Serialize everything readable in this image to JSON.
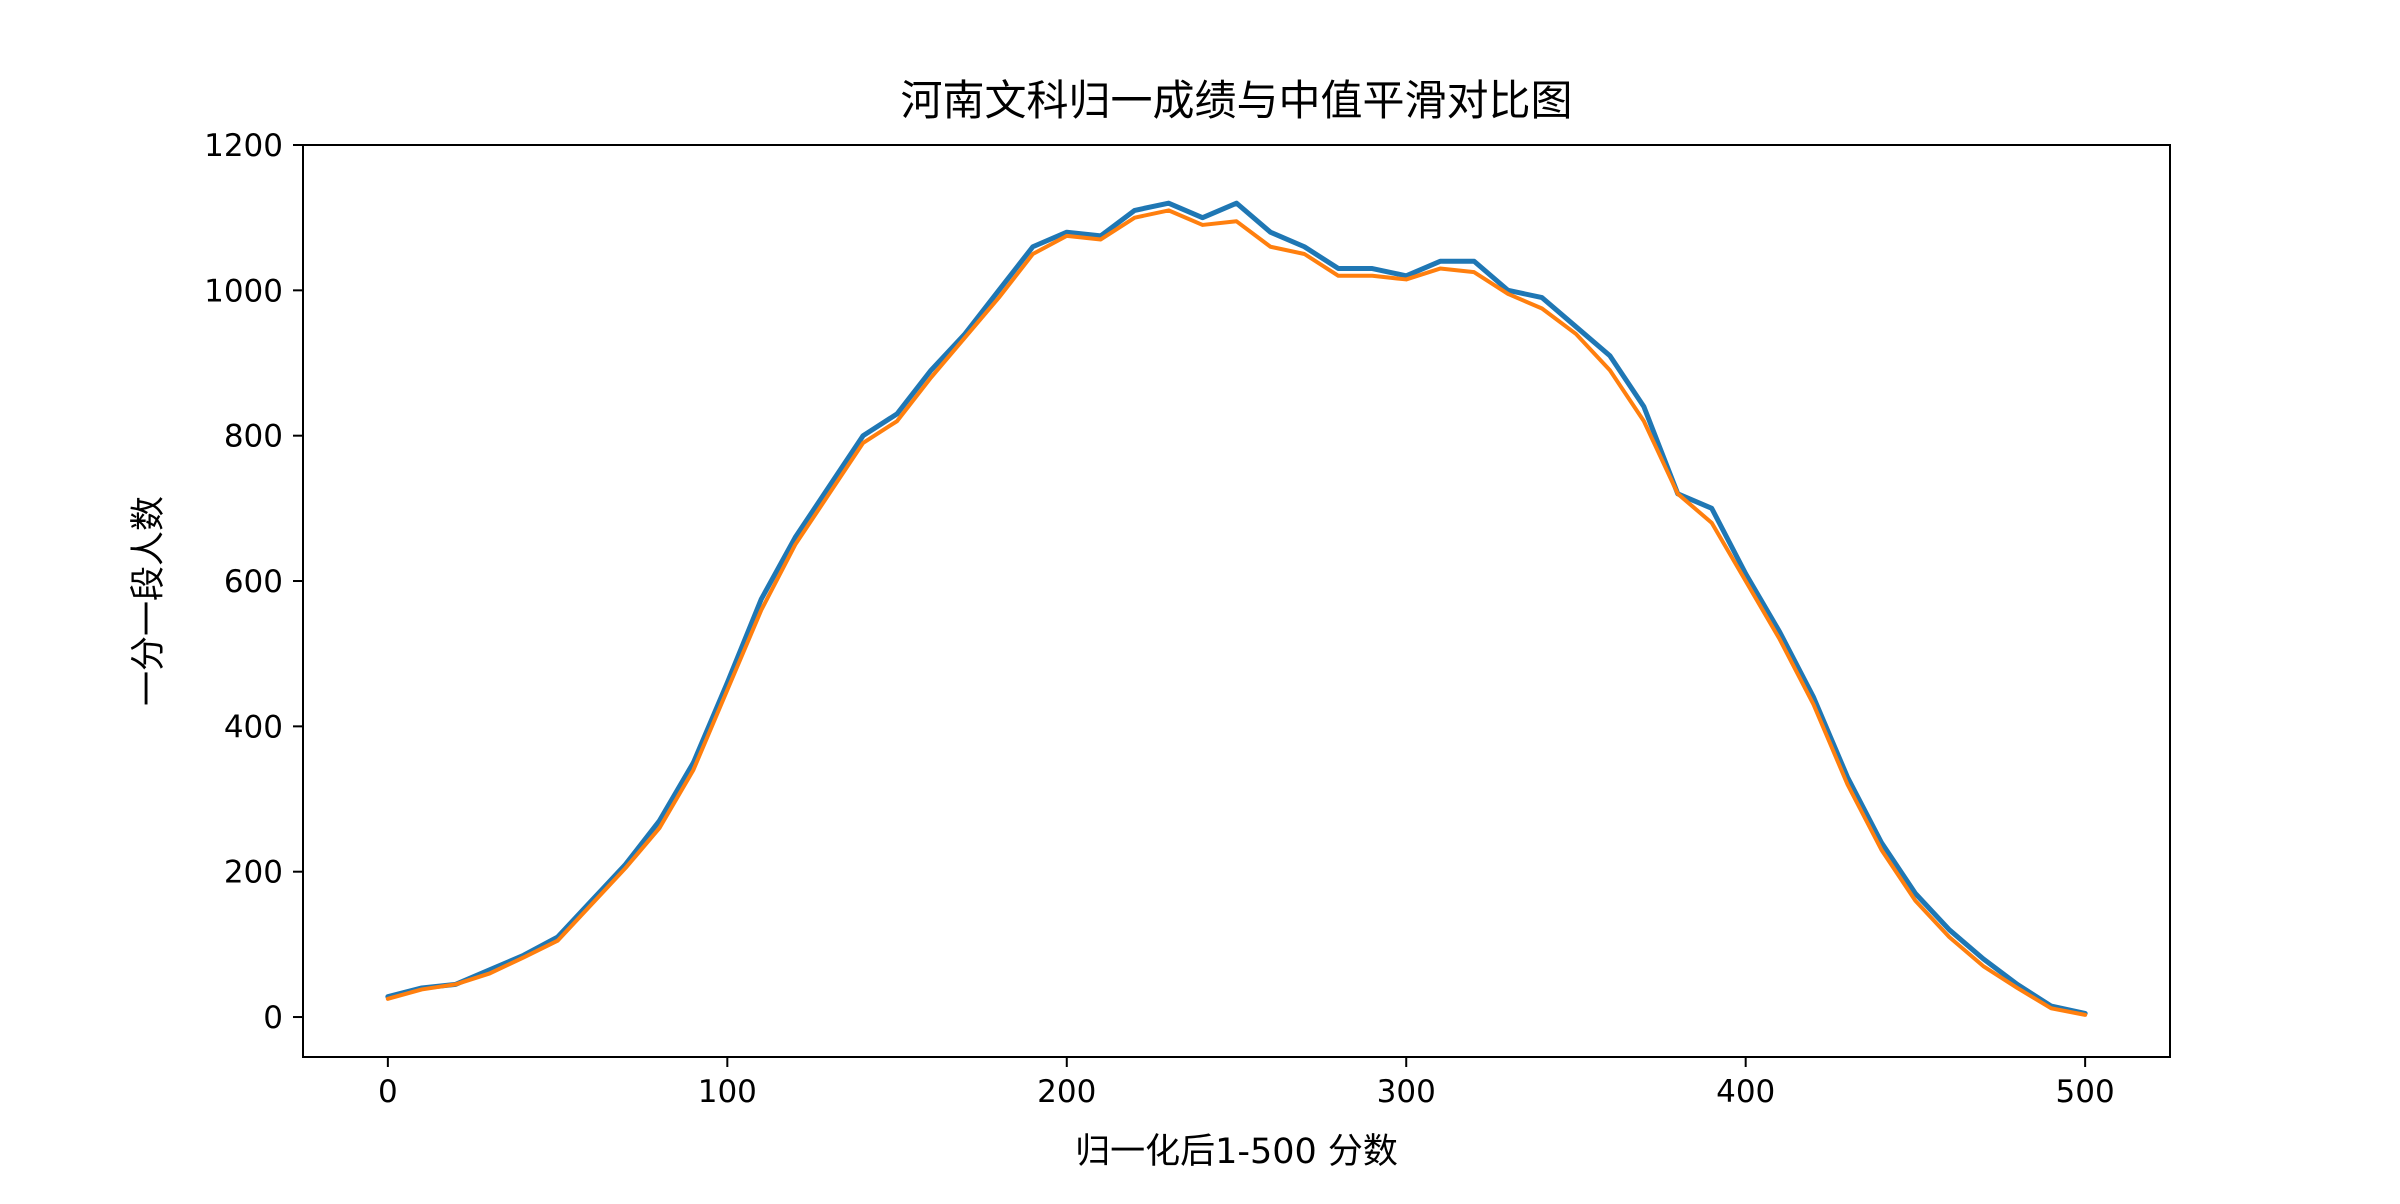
{
  "chart_data": {
    "type": "line",
    "title": "河南文科归一成绩与中值平滑对比图",
    "xlabel": "归一化后1-500 分数",
    "ylabel": "一分一段人数",
    "xlim": [
      -25,
      525
    ],
    "ylim": [
      -55,
      1200
    ],
    "x_ticks": [
      0,
      100,
      200,
      300,
      400,
      500
    ],
    "y_ticks": [
      0,
      200,
      400,
      600,
      800,
      1000,
      1200
    ],
    "grid": false,
    "legend": "none",
    "x": [
      0,
      10,
      20,
      30,
      40,
      50,
      60,
      70,
      80,
      90,
      100,
      110,
      120,
      130,
      140,
      150,
      160,
      170,
      180,
      190,
      200,
      210,
      220,
      230,
      240,
      250,
      260,
      270,
      280,
      290,
      300,
      310,
      320,
      330,
      340,
      350,
      360,
      370,
      380,
      390,
      400,
      410,
      420,
      430,
      440,
      450,
      460,
      470,
      480,
      490,
      500
    ],
    "series": [
      {
        "color": "#1f77b4",
        "values": [
          28,
          40,
          45,
          65,
          85,
          110,
          160,
          210,
          270,
          350,
          460,
          575,
          660,
          730,
          800,
          830,
          890,
          940,
          1000,
          1060,
          1080,
          1075,
          1110,
          1120,
          1100,
          1120,
          1080,
          1060,
          1030,
          1030,
          1020,
          1040,
          1040,
          1000,
          990,
          950,
          910,
          840,
          720,
          700,
          610,
          530,
          440,
          330,
          240,
          170,
          120,
          80,
          45,
          15,
          5
        ]
      },
      {
        "color": "#ff7f0e",
        "values": [
          25,
          38,
          45,
          60,
          82,
          105,
          155,
          205,
          260,
          340,
          450,
          560,
          650,
          720,
          790,
          820,
          880,
          935,
          990,
          1050,
          1075,
          1070,
          1100,
          1110,
          1090,
          1095,
          1060,
          1050,
          1020,
          1020,
          1015,
          1030,
          1025,
          995,
          975,
          940,
          890,
          820,
          720,
          680,
          600,
          520,
          430,
          320,
          230,
          160,
          110,
          70,
          40,
          12,
          3
        ]
      }
    ]
  }
}
